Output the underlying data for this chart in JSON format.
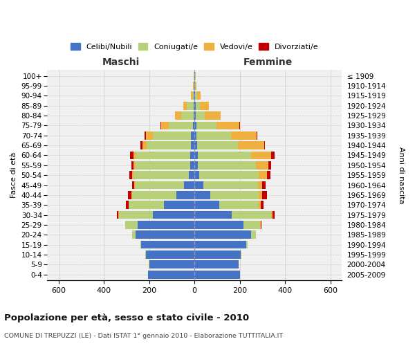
{
  "age_groups": [
    "0-4",
    "5-9",
    "10-14",
    "15-19",
    "20-24",
    "25-29",
    "30-34",
    "35-39",
    "40-44",
    "45-49",
    "50-54",
    "55-59",
    "60-64",
    "65-69",
    "70-74",
    "75-79",
    "80-84",
    "85-89",
    "90-94",
    "95-99",
    "100+"
  ],
  "birth_years": [
    "2005-2009",
    "2000-2004",
    "1995-1999",
    "1990-1994",
    "1985-1989",
    "1980-1984",
    "1975-1979",
    "1970-1974",
    "1965-1969",
    "1960-1964",
    "1955-1959",
    "1950-1954",
    "1945-1949",
    "1940-1944",
    "1935-1939",
    "1930-1934",
    "1925-1929",
    "1920-1924",
    "1915-1919",
    "1910-1914",
    "≤ 1909"
  ],
  "males": {
    "celibi": [
      205,
      200,
      215,
      235,
      260,
      250,
      185,
      135,
      80,
      45,
      25,
      18,
      20,
      15,
      15,
      8,
      5,
      3,
      3,
      2,
      2
    ],
    "coniugati": [
      1,
      1,
      2,
      5,
      15,
      55,
      150,
      155,
      195,
      215,
      245,
      245,
      240,
      195,
      170,
      105,
      55,
      30,
      8,
      3,
      2
    ],
    "vedovi": [
      0,
      0,
      0,
      0,
      0,
      0,
      1,
      2,
      3,
      5,
      5,
      5,
      10,
      20,
      30,
      35,
      25,
      15,
      5,
      2,
      0
    ],
    "divorziati": [
      0,
      0,
      0,
      0,
      1,
      2,
      8,
      10,
      15,
      12,
      12,
      12,
      15,
      8,
      5,
      1,
      0,
      0,
      0,
      0,
      0
    ]
  },
  "females": {
    "nubili": [
      200,
      195,
      205,
      230,
      250,
      215,
      165,
      110,
      70,
      40,
      20,
      15,
      15,
      12,
      10,
      8,
      5,
      4,
      3,
      2,
      2
    ],
    "coniugate": [
      1,
      1,
      2,
      5,
      20,
      75,
      175,
      175,
      215,
      240,
      265,
      255,
      235,
      180,
      150,
      90,
      40,
      20,
      8,
      3,
      2
    ],
    "vedove": [
      0,
      0,
      0,
      0,
      1,
      2,
      5,
      8,
      15,
      20,
      35,
      55,
      90,
      115,
      115,
      100,
      70,
      40,
      15,
      5,
      2
    ],
    "divorziate": [
      0,
      0,
      0,
      0,
      1,
      3,
      10,
      12,
      20,
      15,
      15,
      15,
      15,
      5,
      3,
      2,
      1,
      0,
      0,
      0,
      0
    ]
  },
  "colors": {
    "celibi": "#4472c4",
    "coniugati": "#b8d07a",
    "vedovi": "#f0b040",
    "divorziati": "#c00000"
  },
  "xlim": 650,
  "title": "Popolazione per età, sesso e stato civile - 2010",
  "subtitle": "COMUNE DI TREPUZZI (LE) - Dati ISTAT 1° gennaio 2010 - Elaborazione TUTTITALIA.IT",
  "ylabel_left": "Fasce di età",
  "ylabel_right": "Anni di nascita",
  "xlabel_maschi": "Maschi",
  "xlabel_femmine": "Femmine",
  "background_color": "#ffffff",
  "grid_color": "#cccccc"
}
